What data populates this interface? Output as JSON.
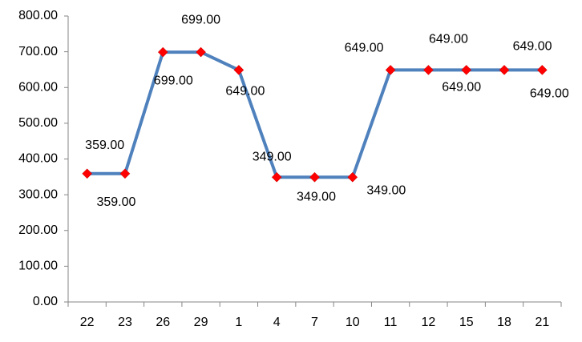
{
  "chart_data": {
    "type": "line",
    "categories": [
      "22",
      "23",
      "26",
      "29",
      "1",
      "4",
      "7",
      "10",
      "11",
      "12",
      "15",
      "18",
      "21"
    ],
    "series": [
      {
        "color": "#4f81bd",
        "marker_color": "#ff0000",
        "values": [
          359,
          359,
          699,
          699,
          649,
          349,
          349,
          349,
          649,
          649,
          649,
          649,
          649
        ],
        "value_labels": [
          "359.00",
          "359.00",
          "699.00",
          "699.00",
          "649.00",
          "349.00",
          "349.00",
          "349.00",
          "649.00",
          "649.00",
          "649.00",
          "649.00",
          "649.00"
        ]
      }
    ],
    "ylim": [
      0,
      800
    ],
    "yticks": [
      {
        "value": 0,
        "label": "0.00"
      },
      {
        "value": 100,
        "label": "100.00"
      },
      {
        "value": 200,
        "label": "200.00"
      },
      {
        "value": 300,
        "label": "300.00"
      },
      {
        "value": 400,
        "label": "400.00"
      },
      {
        "value": 500,
        "label": "500.00"
      },
      {
        "value": 600,
        "label": "600.00"
      },
      {
        "value": 700,
        "label": "700.00"
      },
      {
        "value": 800,
        "label": "800.00"
      }
    ],
    "grid": false
  }
}
